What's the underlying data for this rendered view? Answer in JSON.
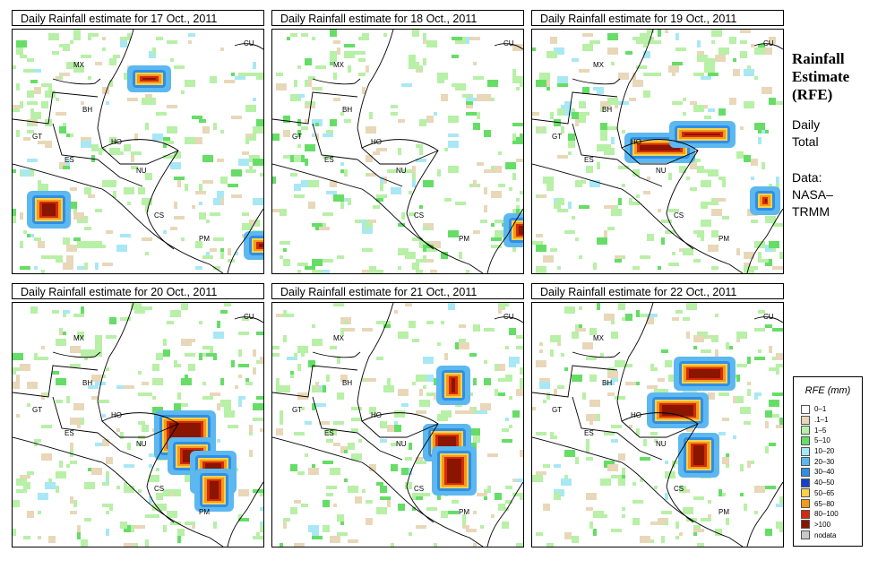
{
  "panels": [
    {
      "title": "Daily Rainfall estimate for  17 Oct., 2011",
      "heavy": [
        [
          270,
          235,
          18,
          12
        ],
        [
          140,
          50,
          25,
          10
        ],
        [
          28,
          190,
          25,
          22
        ]
      ]
    },
    {
      "title": "Daily Rainfall estimate for  18 Oct., 2011",
      "heavy": [
        [
          270,
          215,
          15,
          18
        ]
      ]
    },
    {
      "title": "Daily Rainfall estimate for  19 Oct., 2011",
      "heavy": [
        [
          115,
          125,
          55,
          14
        ],
        [
          165,
          112,
          50,
          10
        ],
        [
          255,
          185,
          10,
          12
        ]
      ]
    },
    {
      "title": "Daily Rainfall estimate for  20 Oct., 2011",
      "heavy": [
        [
          170,
          130,
          45,
          35
        ],
        [
          185,
          160,
          30,
          22
        ],
        [
          210,
          175,
          28,
          28
        ],
        [
          215,
          195,
          20,
          28
        ]
      ]
    },
    {
      "title": "Daily Rainfall estimate for  21 Oct., 2011",
      "heavy": [
        [
          195,
          80,
          14,
          24
        ],
        [
          180,
          145,
          30,
          22
        ],
        [
          190,
          170,
          26,
          35
        ]
      ]
    },
    {
      "title": "Daily Rainfall estimate for  22 Oct., 2011",
      "heavy": [
        [
          170,
          70,
          45,
          18
        ],
        [
          140,
          110,
          45,
          20
        ],
        [
          175,
          155,
          22,
          30
        ]
      ]
    }
  ],
  "map_labels": [
    "MX",
    "BH",
    "GT",
    "HO",
    "ES",
    "NU",
    "CS",
    "PM",
    "CU"
  ],
  "side": {
    "title_lines": [
      "Rainfall",
      "Estimate",
      "(RFE)"
    ],
    "subtitle_lines": [
      "Daily",
      "Total"
    ],
    "data_lines": [
      "Data:",
      "NASA–",
      "TRMM"
    ]
  },
  "legend": {
    "title": "RFE (mm)",
    "items": [
      {
        "label": "0–1",
        "color": "#ffffff"
      },
      {
        "label": ".1–1",
        "color": "#e8d7b8"
      },
      {
        "label": "1–5",
        "color": "#b7f0a6"
      },
      {
        "label": "5–10",
        "color": "#66dd66"
      },
      {
        "label": "10–20",
        "color": "#a8e8f5"
      },
      {
        "label": "20–30",
        "color": "#5cb8ef"
      },
      {
        "label": "30–40",
        "color": "#2f8ee6"
      },
      {
        "label": "40–50",
        "color": "#1440cc"
      },
      {
        "label": "50–65",
        "color": "#f8d24a"
      },
      {
        "label": "65–80",
        "color": "#f59a18"
      },
      {
        "label": "80–100",
        "color": "#d42a0a"
      },
      {
        "label": ">100",
        "color": "#8a1500"
      },
      {
        "label": "nodata",
        "color": "#c8c8c8"
      }
    ]
  }
}
